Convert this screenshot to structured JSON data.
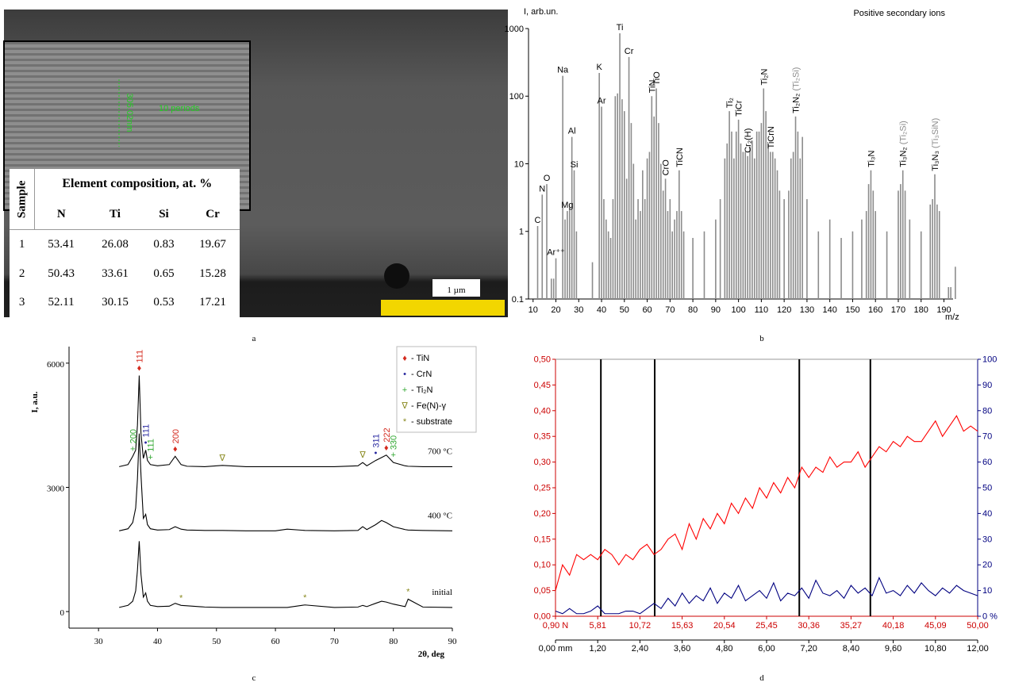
{
  "panel_a": {
    "periods": "10 periods",
    "thickness": "305.02nm",
    "scale": "1 µm",
    "table": {
      "sample_header": "Sample",
      "composition_header": "Element composition, at. %",
      "columns": [
        "N",
        "Ti",
        "Si",
        "Cr"
      ],
      "rows": [
        [
          "1",
          "53.41",
          "26.08",
          "0.83",
          "19.67"
        ],
        [
          "2",
          "50.43",
          "33.61",
          "0.65",
          "15.28"
        ],
        [
          "3",
          "52.11",
          "30.15",
          "0.53",
          "17.21"
        ]
      ]
    }
  },
  "captions": [
    "a",
    "b",
    "c",
    "d"
  ],
  "chart_data": [
    {
      "type": "bar",
      "title": "Positive secondary ions",
      "ylabel": "I, arb.un.",
      "xlabel": "m/z",
      "log_y": true,
      "color": "#8c8c8c",
      "alt_color": "#8c8c8c",
      "x": [
        12,
        14,
        16,
        18,
        19,
        20,
        23,
        24,
        25,
        26,
        27,
        28,
        29,
        36,
        39,
        40,
        41,
        42,
        43,
        44,
        45,
        46,
        47,
        48,
        49,
        50,
        51,
        52,
        53,
        54,
        55,
        56,
        57,
        58,
        59,
        60,
        61,
        62,
        63,
        64,
        65,
        66,
        67,
        68,
        69,
        70,
        71,
        72,
        73,
        74,
        75,
        76,
        80,
        85,
        90,
        92,
        94,
        95,
        96,
        97,
        98,
        99,
        100,
        101,
        102,
        103,
        104,
        105,
        106,
        107,
        108,
        109,
        110,
        111,
        112,
        113,
        114,
        115,
        116,
        117,
        118,
        120,
        122,
        123,
        124,
        125,
        126,
        127,
        128,
        130,
        135,
        140,
        145,
        150,
        154,
        156,
        157,
        158,
        159,
        160,
        165,
        170,
        171,
        172,
        173,
        175,
        180,
        184,
        185,
        186,
        187,
        188,
        192,
        193,
        195
      ],
      "values": [
        1.2,
        3.5,
        5,
        0.2,
        0.2,
        0.4,
        200,
        1.5,
        2,
        2.3,
        25,
        8,
        1,
        0.35,
        220,
        70,
        3,
        1.5,
        1,
        0.8,
        3,
        100,
        110,
        850,
        90,
        60,
        6,
        380,
        40,
        10,
        1.5,
        3,
        2,
        8,
        3,
        12,
        15,
        100,
        50,
        130,
        40,
        10,
        4,
        6,
        2,
        3,
        1,
        1.5,
        2,
        8,
        2,
        1,
        0.8,
        1,
        1.5,
        3,
        12,
        20,
        60,
        30,
        12,
        30,
        45,
        20,
        15,
        15,
        13,
        18,
        22,
        12,
        30,
        30,
        40,
        130,
        60,
        20,
        15,
        15,
        12,
        8,
        4,
        3,
        4,
        12,
        15,
        50,
        30,
        12,
        25,
        3,
        1,
        1.5,
        0.8,
        1,
        1.5,
        2,
        5,
        8,
        4,
        2,
        1,
        4,
        5,
        8,
        4,
        1.5,
        1,
        2.5,
        3,
        7,
        2.5,
        2,
        0.15,
        0.15,
        0.3
      ],
      "xlim": [
        8,
        194
      ],
      "ylim": [
        0.1,
        1000
      ],
      "xticks": [
        10,
        20,
        30,
        40,
        50,
        60,
        70,
        80,
        90,
        100,
        110,
        120,
        130,
        140,
        150,
        160,
        170,
        180,
        190
      ],
      "yticks": [
        0.1,
        1,
        10,
        100,
        1000
      ],
      "annotations": [
        {
          "text": "C",
          "x": 12
        },
        {
          "text": "N",
          "x": 14
        },
        {
          "text": "O",
          "x": 16
        },
        {
          "text": "Ar⁺⁺",
          "x": 20
        },
        {
          "text": "Na",
          "x": 23
        },
        {
          "text": "Mg",
          "x": 25
        },
        {
          "text": "Al",
          "x": 27
        },
        {
          "text": "Si",
          "x": 28
        },
        {
          "text": "K",
          "x": 39
        },
        {
          "text": "Ar",
          "x": 40
        },
        {
          "text": "Ti",
          "x": 48
        },
        {
          "text": "Cr",
          "x": 52
        },
        {
          "text": "TiN",
          "x": 62,
          "vertical": true
        },
        {
          "text": "TiO",
          "x": 64,
          "vertical": true
        },
        {
          "text": "CrO",
          "x": 68,
          "vertical": true
        },
        {
          "text": "TiCN",
          "x": 74,
          "vertical": true
        },
        {
          "text": "Ti₂",
          "x": 96,
          "vertical": true
        },
        {
          "text": "TiCr",
          "x": 100,
          "vertical": true
        },
        {
          "text": "Cr₂(H)",
          "x": 104,
          "vertical": true
        },
        {
          "text": "Ti₂N",
          "x": 111,
          "vertical": true
        },
        {
          "text": "TiCrN",
          "x": 114,
          "vertical": true
        },
        {
          "text": "Ti₂N₂",
          "alt": "(Ti₂Si)",
          "x": 125,
          "vertical": true
        },
        {
          "text": "Ti₃N",
          "x": 158,
          "vertical": true
        },
        {
          "text": "Ti₃N₂",
          "alt": "(Ti₂Si)",
          "x": 172,
          "vertical": true
        },
        {
          "text": "Ti₃N₃",
          "alt": "(Ti₃SiN)",
          "x": 186,
          "vertical": true
        }
      ]
    },
    {
      "type": "line",
      "xlabel": "2θ, deg",
      "ylabel": "I, a.u.",
      "x": [
        33.5,
        35,
        35.8,
        36.3,
        36.6,
        36.9,
        37.2,
        37.6,
        38.0,
        38.3,
        38.8,
        40,
        42,
        43,
        44,
        45,
        48,
        51,
        55,
        60,
        62,
        65,
        70,
        74,
        74.8,
        75.5,
        77,
        78,
        78.8,
        80,
        82,
        82.5,
        85,
        90
      ],
      "series": [
        {
          "name": "700 °C",
          "color": "#000000",
          "values": [
            3500,
            3550,
            3750,
            3900,
            4500,
            5700,
            4300,
            3700,
            3900,
            3650,
            3550,
            3520,
            3550,
            3750,
            3550,
            3510,
            3500,
            3530,
            3500,
            3500,
            3500,
            3500,
            3500,
            3520,
            3600,
            3520,
            3650,
            3720,
            3780,
            3600,
            3520,
            3510,
            3500,
            3500
          ]
        },
        {
          "name": "400 °C",
          "color": "#000000",
          "values": [
            1950,
            2000,
            2150,
            2500,
            3200,
            4300,
            3300,
            2250,
            2350,
            2100,
            2000,
            1970,
            1980,
            2050,
            1990,
            1970,
            1960,
            1960,
            1950,
            1950,
            1990,
            1960,
            1950,
            1960,
            2050,
            1980,
            2100,
            2200,
            2150,
            2050,
            1980,
            1970,
            1960,
            1950
          ]
        },
        {
          "name": "initial",
          "color": "#000000",
          "values": [
            100,
            150,
            250,
            500,
            1000,
            1700,
            900,
            350,
            450,
            250,
            150,
            120,
            130,
            200,
            150,
            140,
            110,
            100,
            100,
            100,
            100,
            160,
            100,
            110,
            150,
            120,
            200,
            250,
            230,
            180,
            120,
            300,
            110,
            100
          ]
        }
      ],
      "xlim": [
        25,
        90
      ],
      "ylim": [
        -400,
        6400
      ],
      "xticks": [
        30,
        40,
        50,
        60,
        70,
        80,
        90
      ],
      "yticks": [
        0,
        3000,
        6000
      ],
      "legend": [
        {
          "symbol": "♦",
          "label": "- TiN",
          "color": "#d42a1e"
        },
        {
          "symbol": "•",
          "label": "- CrN",
          "color": "#2a2aa0"
        },
        {
          "symbol": "+",
          "label": "- Ti₂N",
          "color": "#33a833"
        },
        {
          "symbol": "∇",
          "label": "- Fe(N)-γ",
          "color": "#8a8a20"
        },
        {
          "symbol": "*",
          "label": "- substrate",
          "color": "#8a8a20"
        }
      ],
      "annotations": [
        {
          "symbol": "♦",
          "label": "111",
          "x": 36.9,
          "series": 0,
          "color": "#d42a1e"
        },
        {
          "symbol": "+",
          "label": "200",
          "x": 35.8,
          "series": 0,
          "color": "#33a833"
        },
        {
          "symbol": "•",
          "label": "111",
          "x": 38.0,
          "series": 0,
          "color": "#2a2aa0"
        },
        {
          "symbol": "+",
          "label": "111",
          "x": 38.8,
          "series": 0,
          "color": "#33a833"
        },
        {
          "symbol": "♦",
          "label": "200",
          "x": 43,
          "series": 0,
          "color": "#d42a1e"
        },
        {
          "symbol": "∇",
          "x": 51,
          "series": 0,
          "color": "#8a8a20"
        },
        {
          "symbol": "∇",
          "x": 74.8,
          "series": 0,
          "color": "#8a8a20"
        },
        {
          "symbol": "•",
          "label": "311",
          "x": 77,
          "series": 0,
          "color": "#2a2aa0"
        },
        {
          "symbol": "♦",
          "label": "222",
          "x": 78.8,
          "series": 0,
          "color": "#d42a1e"
        },
        {
          "symbol": "+",
          "label": "330",
          "x": 80,
          "series": 0,
          "color": "#33a833"
        },
        {
          "symbol": "*",
          "x": 44,
          "series": 2,
          "color": "#8a8a20"
        },
        {
          "symbol": "*",
          "x": 65,
          "series": 2,
          "color": "#8a8a20"
        },
        {
          "symbol": "*",
          "x": 82.5,
          "series": 2,
          "color": "#8a8a20"
        }
      ]
    },
    {
      "type": "line",
      "x": [
        0,
        0.2,
        0.4,
        0.6,
        0.8,
        1,
        1.2,
        1.4,
        1.6,
        1.8,
        2,
        2.2,
        2.4,
        2.6,
        2.8,
        3,
        3.2,
        3.4,
        3.6,
        3.8,
        4,
        4.2,
        4.4,
        4.6,
        4.8,
        5,
        5.2,
        5.4,
        5.6,
        5.8,
        6,
        6.2,
        6.4,
        6.6,
        6.8,
        7,
        7.2,
        7.4,
        7.6,
        7.8,
        8,
        8.2,
        8.4,
        8.6,
        8.8,
        9,
        9.2,
        9.4,
        9.6,
        9.8,
        10,
        10.2,
        10.4,
        10.6,
        10.8,
        11,
        11.2,
        11.4,
        11.6,
        11.8,
        12
      ],
      "series": [
        {
          "color": "#ff0000",
          "values": [
            0.05,
            0.1,
            0.08,
            0.12,
            0.11,
            0.12,
            0.11,
            0.13,
            0.12,
            0.1,
            0.12,
            0.11,
            0.13,
            0.14,
            0.12,
            0.13,
            0.15,
            0.16,
            0.13,
            0.18,
            0.15,
            0.19,
            0.17,
            0.2,
            0.18,
            0.22,
            0.2,
            0.23,
            0.21,
            0.25,
            0.23,
            0.26,
            0.24,
            0.27,
            0.25,
            0.29,
            0.27,
            0.29,
            0.28,
            0.31,
            0.29,
            0.3,
            0.3,
            0.32,
            0.29,
            0.31,
            0.33,
            0.32,
            0.34,
            0.33,
            0.35,
            0.34,
            0.34,
            0.36,
            0.38,
            0.35,
            0.37,
            0.39,
            0.36,
            0.37,
            0.36
          ]
        },
        {
          "color": "#000080",
          "axis": "y2",
          "values": [
            2,
            1,
            3,
            1,
            1,
            2,
            4,
            1,
            1,
            1,
            2,
            2,
            1,
            3,
            5,
            3,
            7,
            4,
            9,
            5,
            8,
            6,
            11,
            5,
            9,
            7,
            12,
            6,
            8,
            10,
            7,
            13,
            6,
            9,
            8,
            11,
            7,
            14,
            9,
            8,
            10,
            7,
            12,
            9,
            11,
            8,
            15,
            9,
            10,
            8,
            12,
            9,
            13,
            10,
            8,
            11,
            9,
            12,
            10,
            9,
            8
          ]
        }
      ],
      "xlim": [
        0,
        12
      ],
      "ylim": [
        0,
        0.5
      ],
      "y2lim": [
        0,
        100
      ],
      "x2lim": [
        0.9,
        50
      ],
      "xticks": [
        {
          "value": 0,
          "label": "0,00 mm"
        },
        {
          "value": 1.2,
          "label": "1,20"
        },
        {
          "value": 2.4,
          "label": "2,40"
        },
        {
          "value": 3.6,
          "label": "3,60"
        },
        {
          "value": 4.8,
          "label": "4,80"
        },
        {
          "value": 6,
          "label": "6,00"
        },
        {
          "value": 7.2,
          "label": "7,20"
        },
        {
          "value": 8.4,
          "label": "8,40"
        },
        {
          "value": 9.6,
          "label": "9,60"
        },
        {
          "value": 10.8,
          "label": "10,80"
        },
        {
          "value": 12,
          "label": "12,00"
        }
      ],
      "x2ticks": [
        {
          "value": 0.9,
          "label": "0,90 N"
        },
        {
          "value": 5.81,
          "label": "5,81"
        },
        {
          "value": 10.72,
          "label": "10,72"
        },
        {
          "value": 15.63,
          "label": "15,63"
        },
        {
          "value": 20.54,
          "label": "20,54"
        },
        {
          "value": 25.45,
          "label": "25,45"
        },
        {
          "value": 30.36,
          "label": "30,36"
        },
        {
          "value": 35.27,
          "label": "35,27"
        },
        {
          "value": 40.18,
          "label": "40,18"
        },
        {
          "value": 45.09,
          "label": "45,09"
        },
        {
          "value": 50,
          "label": "50,00"
        }
      ],
      "yticks": [
        {
          "value": 0,
          "label": "0,00"
        },
        {
          "value": 0.05,
          "label": "0,05"
        },
        {
          "value": 0.1,
          "label": "0,10"
        },
        {
          "value": 0.15,
          "label": "0,15"
        },
        {
          "value": 0.2,
          "label": "0,20"
        },
        {
          "value": 0.25,
          "label": "0,25"
        },
        {
          "value": 0.3,
          "label": "0,30"
        },
        {
          "value": 0.35,
          "label": "0,35"
        },
        {
          "value": 0.4,
          "label": "0,40"
        },
        {
          "value": 0.45,
          "label": "0,45"
        },
        {
          "value": 0.5,
          "label": "0,50"
        }
      ],
      "y2ticks": [
        {
          "value": 0,
          "label": "0 %"
        },
        10,
        20,
        30,
        40,
        50,
        60,
        70,
        80,
        90,
        100
      ],
      "vlines": [
        1.29,
        2.82,
        6.93,
        8.95
      ]
    }
  ]
}
